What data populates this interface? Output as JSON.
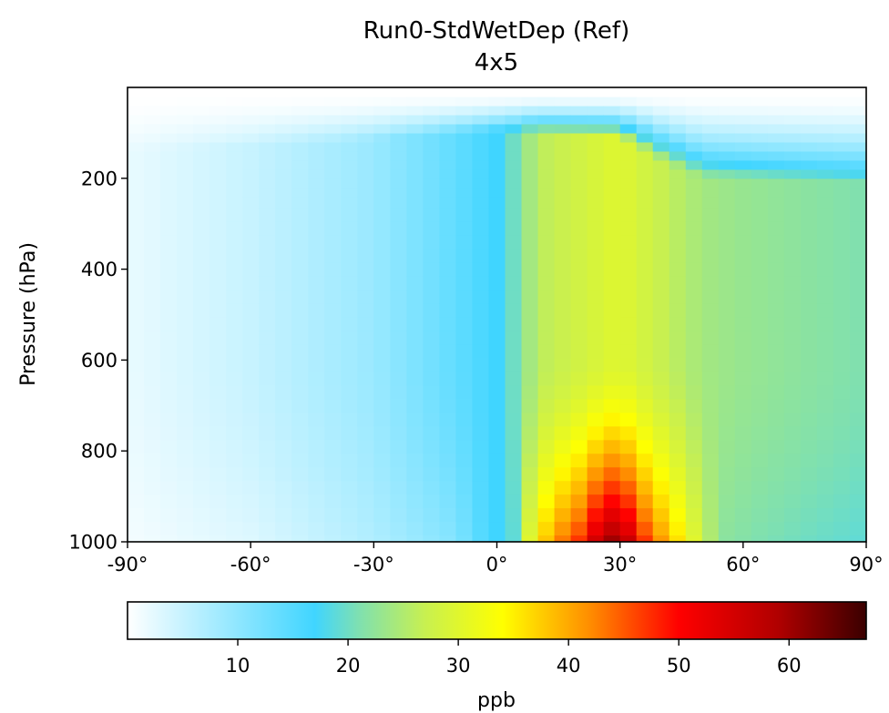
{
  "chart_data": {
    "type": "heatmap",
    "title": "Run0-StdWetDep (Ref)",
    "subtitle": "4x5",
    "xlabel": "",
    "ylabel": "Pressure (hPa)",
    "xlim": [
      -90,
      90
    ],
    "ylim": [
      1000,
      0
    ],
    "x_ticks": [
      {
        "value": -90,
        "label": "-90°"
      },
      {
        "value": -60,
        "label": "-60°"
      },
      {
        "value": -30,
        "label": "-30°"
      },
      {
        "value": 0,
        "label": "0°"
      },
      {
        "value": 30,
        "label": "30°"
      },
      {
        "value": 60,
        "label": "60°"
      },
      {
        "value": 90,
        "label": "90°"
      }
    ],
    "y_ticks": [
      {
        "value": 200,
        "label": "200"
      },
      {
        "value": 400,
        "label": "400"
      },
      {
        "value": 600,
        "label": "600"
      },
      {
        "value": 800,
        "label": "800"
      },
      {
        "value": 1000,
        "label": "1000"
      }
    ],
    "lat_step_deg": 4,
    "pressure_levels_hPa": [
      1000,
      970,
      940,
      910,
      880,
      850,
      820,
      790,
      760,
      730,
      700,
      670,
      640,
      610,
      580,
      550,
      520,
      490,
      460,
      430,
      400,
      370,
      340,
      310,
      280,
      250,
      230,
      210,
      190,
      170,
      150,
      130,
      110,
      90,
      70,
      50,
      30,
      10
    ],
    "colorbar": {
      "label": "ppb",
      "range": [
        0,
        67
      ],
      "ticks": [
        10,
        20,
        30,
        40,
        50,
        60
      ],
      "colormap": [
        {
          "v": 0,
          "color": "#ffffff"
        },
        {
          "v": 17,
          "color": "#40d5ff"
        },
        {
          "v": 21,
          "color": "#7fe0b0"
        },
        {
          "v": 27,
          "color": "#c8f050"
        },
        {
          "v": 34,
          "color": "#ffff00"
        },
        {
          "v": 42,
          "color": "#ff8c00"
        },
        {
          "v": 50,
          "color": "#ff0000"
        },
        {
          "v": 59,
          "color": "#b00000"
        },
        {
          "v": 67,
          "color": "#3a0000"
        }
      ]
    },
    "field_anchor_ppb": {
      "surface_by_lat": [
        {
          "lat": -90,
          "value": 1
        },
        {
          "lat": -60,
          "value": 3
        },
        {
          "lat": -30,
          "value": 7
        },
        {
          "lat": -10,
          "value": 11
        },
        {
          "lat": -4,
          "value": 15
        },
        {
          "lat": 0,
          "value": 17
        },
        {
          "lat": 4,
          "value": 19
        },
        {
          "lat": 8,
          "value": 30
        },
        {
          "lat": 12,
          "value": 38
        },
        {
          "lat": 16,
          "value": 43
        },
        {
          "lat": 20,
          "value": 47
        },
        {
          "lat": 24,
          "value": 55
        },
        {
          "lat": 28,
          "value": 60
        },
        {
          "lat": 32,
          "value": 56
        },
        {
          "lat": 36,
          "value": 47
        },
        {
          "lat": 40,
          "value": 41
        },
        {
          "lat": 44,
          "value": 36
        },
        {
          "lat": 48,
          "value": 30
        },
        {
          "lat": 52,
          "value": 25
        },
        {
          "lat": 56,
          "value": 22
        },
        {
          "lat": 64,
          "value": 21
        },
        {
          "lat": 76,
          "value": 20
        },
        {
          "lat": 90,
          "value": 19
        }
      ],
      "mid_levels_by_lat": [
        {
          "lat": -90,
          "value": 2
        },
        {
          "lat": -60,
          "value": 5
        },
        {
          "lat": -30,
          "value": 9
        },
        {
          "lat": -10,
          "value": 14
        },
        {
          "lat": 0,
          "value": 17
        },
        {
          "lat": 4,
          "value": 20
        },
        {
          "lat": 10,
          "value": 26
        },
        {
          "lat": 20,
          "value": 28
        },
        {
          "lat": 30,
          "value": 30
        },
        {
          "lat": 40,
          "value": 27
        },
        {
          "lat": 50,
          "value": 24
        },
        {
          "lat": 60,
          "value": 23
        },
        {
          "lat": 75,
          "value": 22
        },
        {
          "lat": 90,
          "value": 21
        }
      ],
      "tropopause_hPa_by_lat": [
        {
          "lat": -90,
          "value": 140
        },
        {
          "lat": -40,
          "value": 120
        },
        {
          "lat": 0,
          "value": 95
        },
        {
          "lat": 30,
          "value": 110
        },
        {
          "lat": 40,
          "value": 160
        },
        {
          "lat": 50,
          "value": 200
        },
        {
          "lat": 90,
          "value": 210
        }
      ]
    }
  }
}
